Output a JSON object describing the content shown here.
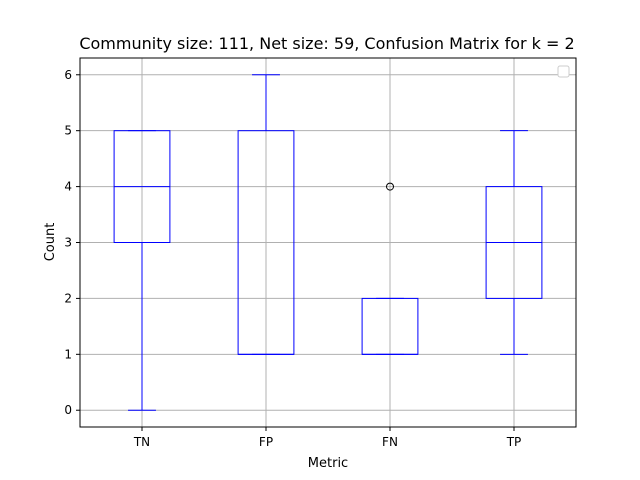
{
  "chart_data": {
    "type": "box",
    "title": "Community size: 111, Net size: 59, Confusion Matrix for k = 2",
    "xlabel": "Metric",
    "ylabel": "Count",
    "categories": [
      "TN",
      "FP",
      "FN",
      "TP"
    ],
    "boxes": [
      {
        "category": "TN",
        "whisker_low": 0,
        "q1": 3,
        "median": 4,
        "q3": 5,
        "whisker_high": 5,
        "outliers": []
      },
      {
        "category": "FP",
        "whisker_low": 1,
        "q1": 1,
        "median": 1,
        "q3": 5,
        "whisker_high": 6,
        "outliers": []
      },
      {
        "category": "FN",
        "whisker_low": 1,
        "q1": 1,
        "median": 1,
        "q3": 2,
        "whisker_high": 2,
        "outliers": [
          4
        ]
      },
      {
        "category": "TP",
        "whisker_low": 1,
        "q1": 2,
        "median": 3,
        "q3": 4,
        "whisker_high": 5,
        "outliers": []
      }
    ],
    "yticks": [
      0,
      1,
      2,
      3,
      4,
      5,
      6
    ],
    "ylim": [
      -0.3,
      6.3
    ],
    "grid": true,
    "legend": "top-right (empty)",
    "colors": {
      "box": "#0000ff",
      "grid": "#b0b0b0",
      "outlier": "#000000"
    }
  }
}
